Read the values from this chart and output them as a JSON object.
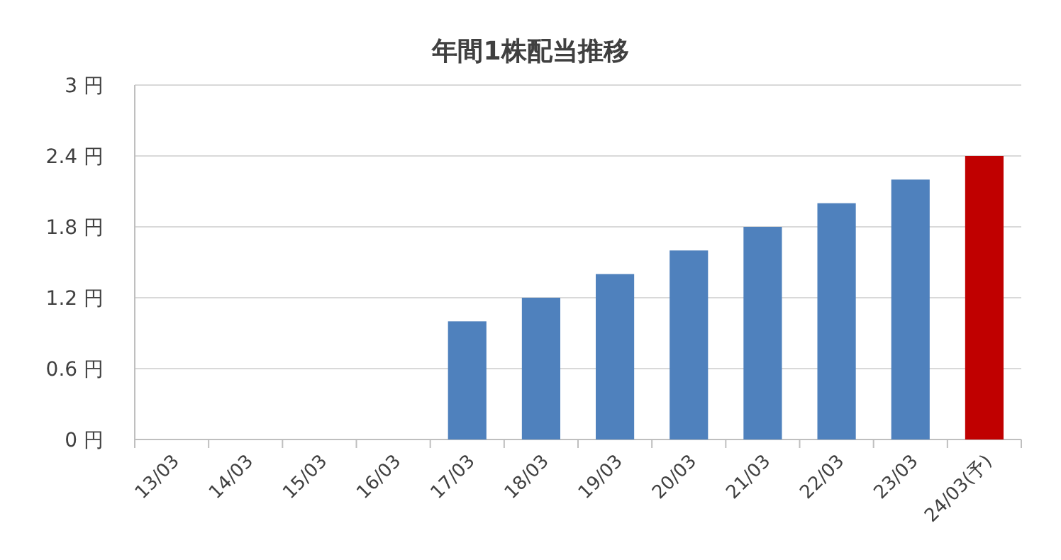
{
  "chart_data": {
    "type": "bar",
    "title": "年間1株配当推移",
    "categories": [
      "13/03",
      "14/03",
      "15/03",
      "16/03",
      "17/03",
      "18/03",
      "19/03",
      "20/03",
      "21/03",
      "22/03",
      "23/03",
      "24/03(予)"
    ],
    "values": [
      0,
      0,
      0,
      0,
      1.0,
      1.2,
      1.4,
      1.6,
      1.8,
      2.0,
      2.2,
      2.4
    ],
    "colors": [
      "#4f81bd",
      "#4f81bd",
      "#4f81bd",
      "#4f81bd",
      "#4f81bd",
      "#4f81bd",
      "#4f81bd",
      "#4f81bd",
      "#4f81bd",
      "#4f81bd",
      "#4f81bd",
      "#c00000"
    ],
    "ylim": [
      0,
      3
    ],
    "yticks": [
      {
        "value": 0,
        "label": "0 円"
      },
      {
        "value": 0.6,
        "label": "0.6 円"
      },
      {
        "value": 1.2,
        "label": "1.2 円"
      },
      {
        "value": 1.8,
        "label": "1.8 円"
      },
      {
        "value": 2.4,
        "label": "2.4 円"
      },
      {
        "value": 3,
        "label": "3 円"
      }
    ],
    "grid": "y"
  }
}
